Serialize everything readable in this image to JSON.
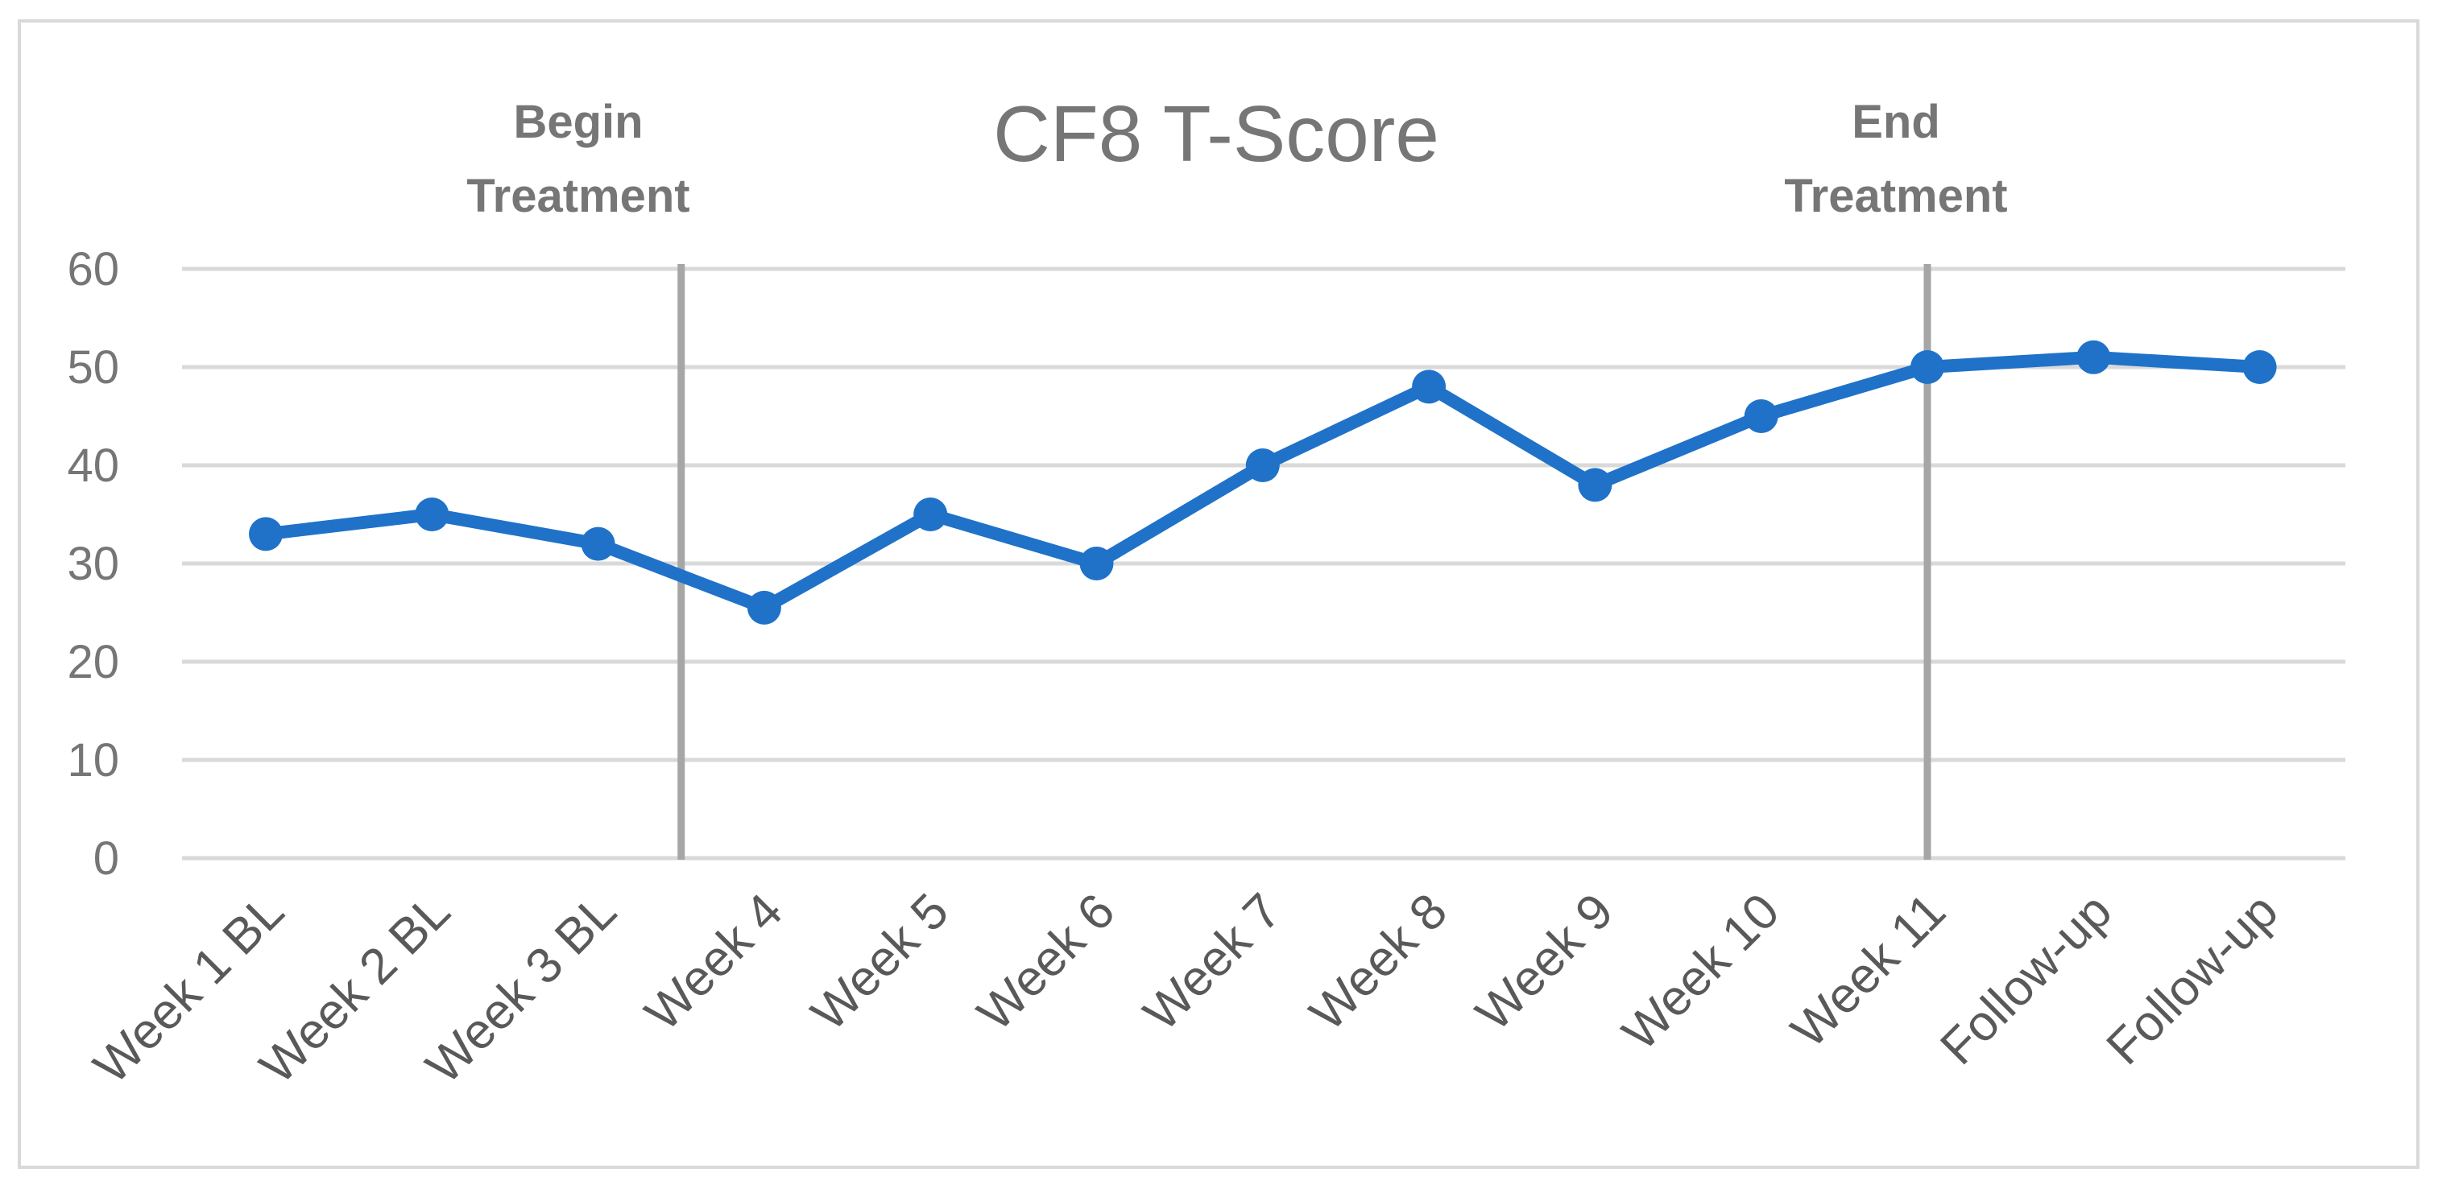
{
  "chart_data": {
    "type": "line",
    "title": "CF8 T-Score",
    "categories": [
      "Week 1 BL",
      "Week 2 BL",
      "Week 3 BL",
      "Week 4",
      "Week 5",
      "Week 6",
      "Week 7",
      "Week 8",
      "Week 9",
      "Week 10",
      "Week 11",
      "Follow-up",
      "Follow-up"
    ],
    "series": [
      {
        "values": [
          33,
          35,
          32,
          25.5,
          35,
          30,
          40,
          48,
          38,
          45,
          50,
          51,
          50
        ],
        "color": "#1f72c8"
      }
    ],
    "ylim": [
      0,
      60
    ],
    "yticks": [
      0,
      10,
      20,
      30,
      40,
      50,
      60
    ],
    "grid": true,
    "legend": "none",
    "annotations": [
      {
        "lines": [
          "Begin",
          "Treatment"
        ],
        "between": [
          "Week 3 BL",
          "Week 4"
        ],
        "marker": "vertical-line"
      },
      {
        "lines": [
          "End",
          "Treatment"
        ],
        "at": "Week 11",
        "marker": "vertical-line"
      }
    ],
    "colors": {
      "series": "#1f72c8",
      "gridline": "#d9d9d9",
      "marker_line": "#a6a6a6",
      "text": "#767676",
      "tick_text": "#595959"
    }
  }
}
